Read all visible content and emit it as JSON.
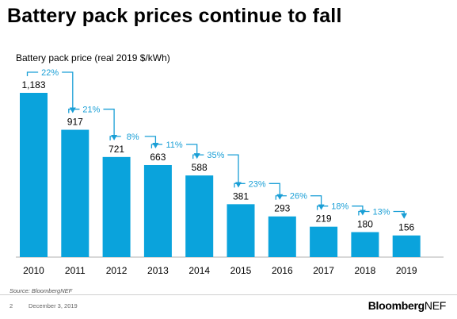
{
  "slide": {
    "title": "Battery pack prices continue to fall",
    "source": "Source: BloombergNEF",
    "page_number": "2",
    "date": "December 3, 2019",
    "logo_bold": "Bloomberg",
    "logo_light": "NEF"
  },
  "colors": {
    "bar": "#0aa3dc",
    "arrow": "#1a9fd6",
    "baseline": "#b0b0b0"
  },
  "chart_data": {
    "type": "bar",
    "title": "",
    "ylabel": "Battery pack price (real 2019 $/kWh)",
    "categories": [
      "2010",
      "2011",
      "2012",
      "2013",
      "2014",
      "2015",
      "2016",
      "2017",
      "2018",
      "2019"
    ],
    "values": [
      1183,
      917,
      721,
      663,
      588,
      381,
      293,
      219,
      180,
      156
    ],
    "value_labels": [
      "1,183",
      "917",
      "721",
      "663",
      "588",
      "381",
      "293",
      "219",
      "180",
      "156"
    ],
    "change_labels": [
      "22%",
      "21%",
      "8%",
      "11%",
      "35%",
      "23%",
      "26%",
      "18%",
      "13%"
    ],
    "ylim": [
      0,
      1183
    ],
    "grid": false,
    "legend": "none"
  }
}
